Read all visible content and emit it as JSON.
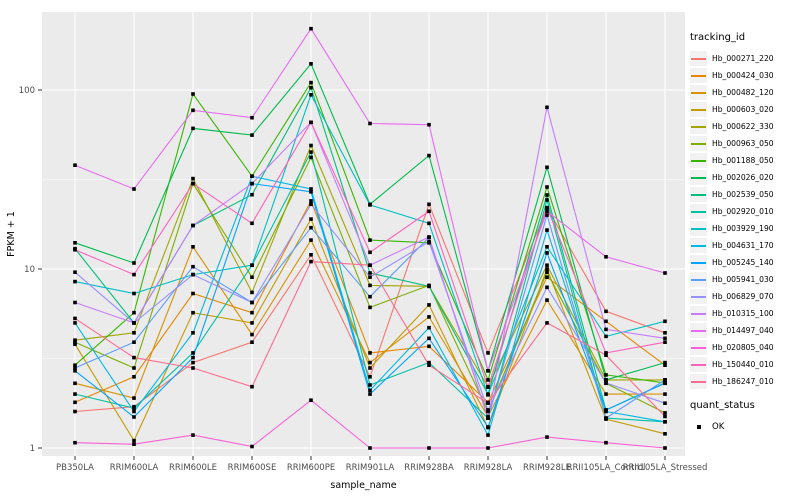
{
  "chart_data": {
    "type": "line",
    "x_axis": {
      "label": "sample_name",
      "categories": [
        "PB350LA",
        "RRIM600LA",
        "RRIM600LE",
        "RRIM600SE",
        "RRIM600PE",
        "RRIM901LA",
        "RRIM928BA",
        "RRIM928LA",
        "RRIM928LE",
        "RRII105LA_Control",
        "RRII105LA_Stressed"
      ]
    },
    "y_axis": {
      "label": "FPKM + 1",
      "scale": "log10",
      "ticks": [
        1,
        10,
        100
      ],
      "range": [
        1,
        280
      ]
    },
    "legend": {
      "tracking_title": "tracking_id",
      "quant_title": "quant_status",
      "quant_items": [
        {
          "label": "OK",
          "marker": "black-square"
        }
      ]
    },
    "style": {
      "panel_bg": "#EBEBEB",
      "grid_color": "#FFFFFF",
      "tick_label_color": "#4D4D4D",
      "axis_title_color": "#000000",
      "point_color": "#000000",
      "key_bg": "#F2F2F2"
    },
    "series": [
      {
        "name": "Hb_000271_220",
        "color": "#F8766D",
        "values": [
          1.6,
          1.7,
          3.0,
          3.9,
          12,
          2.5,
          23,
          3.4,
          22,
          5.8,
          4.4
        ]
      },
      {
        "name": "Hb_000424_030",
        "color": "#E58700",
        "values": [
          1.8,
          2.5,
          7.3,
          5.7,
          24,
          3.4,
          3.7,
          1.8,
          9.0,
          5.1,
          2.9
        ]
      },
      {
        "name": "Hb_000482_120",
        "color": "#D89000",
        "values": [
          2.3,
          1.9,
          13.3,
          4.3,
          14.5,
          3.0,
          5.4,
          1.5,
          6.7,
          2.0,
          2.0
        ]
      },
      {
        "name": "Hb_000603_020",
        "color": "#C49A00",
        "values": [
          3.8,
          1.1,
          5.7,
          5.0,
          19,
          2.8,
          6.3,
          1.3,
          10,
          1.45,
          1.2
        ]
      },
      {
        "name": "Hb_000622_330",
        "color": "#A3A500",
        "values": [
          4.0,
          4.4,
          32,
          7.4,
          49,
          8.1,
          8.0,
          2.2,
          10.5,
          2.4,
          2.4
        ]
      },
      {
        "name": "Hb_000963_050",
        "color": "#7CAE00",
        "values": [
          3.9,
          2.8,
          30,
          9.0,
          42,
          6.1,
          8.1,
          1.6,
          9.6,
          2.3,
          1.57
        ]
      },
      {
        "name": "Hb_001188_050",
        "color": "#39B600",
        "values": [
          2.9,
          5.7,
          95,
          33,
          110,
          14.5,
          14,
          2.4,
          28.7,
          2.56,
          2.31
        ]
      },
      {
        "name": "Hb_002026_020",
        "color": "#00BB4E",
        "values": [
          14,
          10.8,
          61,
          56,
          140,
          23,
          43,
          2.7,
          37,
          2.4,
          3.0
        ]
      },
      {
        "name": "Hb_002539_050",
        "color": "#00BF7D",
        "values": [
          13,
          5.0,
          17.5,
          26,
          103,
          9.5,
          8.0,
          2.0,
          25.9,
          1.63,
          2.31
        ]
      },
      {
        "name": "Hb_002920_010",
        "color": "#00C1A3",
        "values": [
          2.0,
          1.67,
          3.4,
          10.5,
          45,
          2.25,
          3.0,
          1.47,
          24.3,
          1.47,
          1.4
        ]
      },
      {
        "name": "Hb_003929_190",
        "color": "#00BFC4",
        "values": [
          8.5,
          7.3,
          9.3,
          10.5,
          94,
          22.8,
          18,
          1.98,
          13.3,
          4.2,
          5.1
        ]
      },
      {
        "name": "Hb_004631_170",
        "color": "#00B8E5",
        "values": [
          5.0,
          1.6,
          4.4,
          33,
          28,
          2.1,
          4.7,
          1.18,
          16.5,
          1.6,
          1.4
        ]
      },
      {
        "name": "Hb_005245_140",
        "color": "#00A5FF",
        "values": [
          2.7,
          1.49,
          3.2,
          30,
          27,
          2.0,
          4.1,
          1.31,
          12.3,
          1.63,
          2.3
        ]
      },
      {
        "name": "Hb_005941_030",
        "color": "#5A9DFF",
        "values": [
          2.8,
          3.9,
          10.3,
          6.5,
          17,
          7.0,
          15,
          1.47,
          20,
          1.47,
          2.4
        ]
      },
      {
        "name": "Hb_006829_070",
        "color": "#9590FF",
        "values": [
          9.6,
          5.0,
          9.3,
          6.5,
          23,
          9.0,
          14.2,
          1.63,
          7.9,
          2.31,
          1.78
        ]
      },
      {
        "name": "Hb_010315_100",
        "color": "#C77CFF",
        "values": [
          6.5,
          5.0,
          17.5,
          30,
          66,
          10.5,
          15.1,
          1.47,
          80,
          4.6,
          4.1
        ]
      },
      {
        "name": "Hb_014497_040",
        "color": "#E76BF3",
        "values": [
          38,
          28,
          77,
          70,
          220,
          65,
          64,
          2.7,
          21,
          11.7,
          9.5
        ]
      },
      {
        "name": "Hb_020805_040",
        "color": "#FB61D7",
        "values": [
          1.07,
          1.05,
          1.18,
          1.02,
          1.85,
          1.0,
          1.0,
          1.0,
          1.15,
          1.07,
          1.0
        ]
      },
      {
        "name": "Hb_150440_010",
        "color": "#FF62BC",
        "values": [
          12.8,
          9.3,
          30,
          18,
          66,
          12.4,
          21,
          2.19,
          22,
          3.4,
          3.9
        ]
      },
      {
        "name": "Hb_186247_010",
        "color": "#FF6C91",
        "values": [
          5.3,
          3.2,
          2.8,
          2.2,
          11,
          10.5,
          2.9,
          1.78,
          5.0,
          3.3,
          1.5
        ]
      }
    ]
  }
}
